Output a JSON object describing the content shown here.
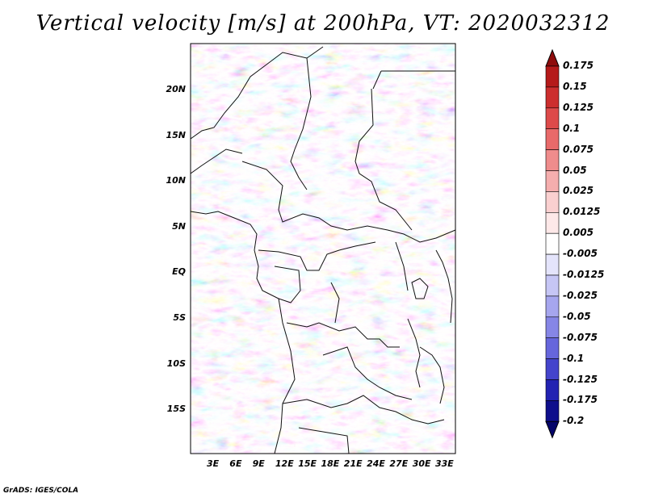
{
  "title": "Vertical velocity [m/s] at 200hPa, VT: 2020032312",
  "footer": "GrADS: IGES/COLA",
  "lat_labels": [
    "20N",
    "15N",
    "10N",
    "5N",
    "EQ",
    "5S",
    "10S",
    "15S"
  ],
  "lon_labels": [
    "3E",
    "6E",
    "9E",
    "12E",
    "15E",
    "18E",
    "21E",
    "24E",
    "27E",
    "30E",
    "33E"
  ],
  "colorbar": {
    "labels": [
      "0.175",
      "0.15",
      "0.125",
      "0.1",
      "0.075",
      "0.05",
      "0.025",
      "0.0125",
      "0.005",
      "-0.005",
      "-0.0125",
      "-0.025",
      "-0.05",
      "-0.075",
      "-0.1",
      "-0.125",
      "-0.175",
      "-0.2"
    ],
    "colors": [
      "#8e0d0d",
      "#b51a1a",
      "#cc2e2e",
      "#dd4a4a",
      "#e86a6a",
      "#ef8c8c",
      "#f5aeae",
      "#fad0d0",
      "#fde8e8",
      "#ffffff",
      "#e4e4fb",
      "#c6c6f5",
      "#a6a6ee",
      "#8686e6",
      "#6666dc",
      "#4444cc",
      "#2222b2",
      "#0f0f8c",
      "#05056a"
    ]
  }
}
